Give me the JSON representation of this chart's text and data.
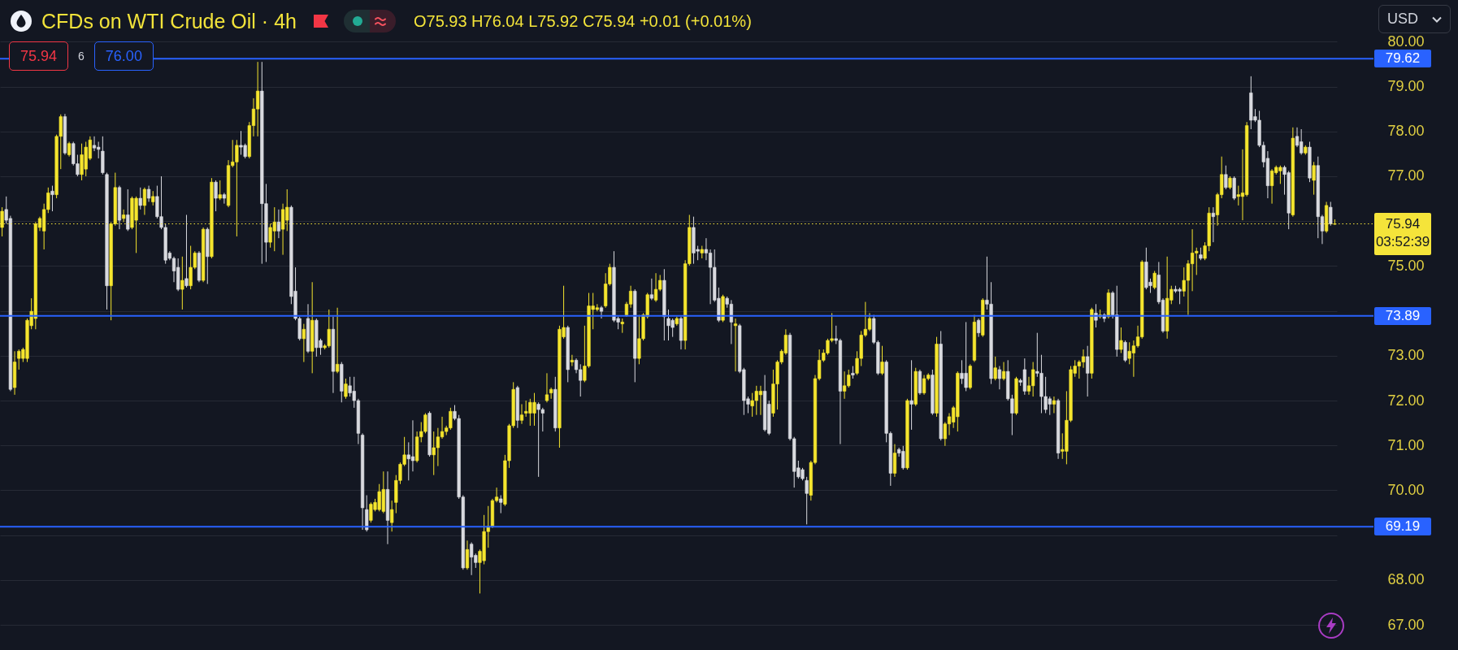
{
  "chart_data": {
    "type": "candlestick",
    "title": "CFDs on WTI Crude Oil · 4h",
    "subtitle": "O75.93 H76.04 L75.92 C75.94 +0.01 (+0.01%)",
    "annotations": [
      "75.94",
      "6",
      "76.00",
      "USD",
      "03:52:39"
    ],
    "categories": [
      null,
      null,
      null,
      null,
      null,
      null,
      null,
      null,
      null,
      null,
      null,
      null,
      null,
      null,
      null,
      null,
      null,
      null,
      null,
      null,
      null,
      null,
      null,
      null,
      null,
      null,
      null,
      null,
      null,
      null,
      null,
      null,
      null,
      null,
      null,
      null,
      null,
      null,
      null,
      null,
      null,
      null,
      null,
      null,
      null,
      null,
      null,
      null,
      null,
      null,
      null,
      null,
      null,
      null,
      null,
      null,
      null,
      null,
      null,
      null,
      null,
      null,
      null,
      null,
      null,
      null,
      null,
      null,
      null,
      null,
      null,
      null,
      null,
      null,
      null,
      null,
      null,
      null,
      null,
      null,
      null,
      null,
      null,
      null,
      null,
      null,
      null,
      null,
      null,
      null,
      null,
      null,
      null,
      null,
      null,
      null,
      null,
      null,
      null,
      null,
      null,
      null,
      null,
      null,
      null,
      null,
      null,
      null,
      null,
      null,
      null,
      null,
      null,
      null,
      null,
      null,
      null,
      null,
      null,
      null,
      null,
      null,
      null,
      null,
      null,
      null,
      null,
      null,
      null,
      null,
      null,
      null,
      null,
      null,
      null,
      null,
      null,
      null,
      null,
      null,
      null,
      null,
      null,
      null,
      null,
      null,
      null,
      null,
      null,
      null,
      null,
      null,
      null,
      null,
      null,
      null,
      null,
      null,
      null,
      null,
      null,
      null,
      null,
      null,
      null,
      null,
      null,
      null,
      null,
      null,
      null,
      null,
      null,
      null,
      null,
      null,
      null,
      null,
      null,
      null,
      null,
      null,
      null,
      null,
      null,
      null,
      null,
      null,
      null,
      null,
      null,
      null,
      null,
      null,
      null,
      null,
      null,
      null,
      null,
      null,
      null,
      null,
      null,
      null,
      null,
      null,
      null,
      null,
      null,
      null,
      null,
      null,
      null,
      null,
      null,
      null,
      null,
      null,
      null,
      null,
      null,
      null,
      null,
      null,
      null,
      null,
      null,
      null,
      null,
      null,
      null,
      null,
      null,
      null,
      null,
      null,
      null,
      null,
      null,
      null,
      null,
      null,
      null,
      null,
      null,
      null,
      null,
      null,
      null,
      null,
      null,
      null,
      null,
      null,
      null,
      null,
      null,
      null,
      null,
      null,
      null,
      null,
      null,
      null,
      null,
      null,
      null,
      null,
      null,
      null,
      null,
      null,
      null,
      null,
      null,
      null,
      null,
      null,
      null,
      null,
      null,
      null,
      null,
      null,
      null,
      null,
      null,
      null,
      null,
      null,
      null,
      null,
      null,
      null,
      null,
      null,
      null,
      null,
      null,
      null,
      null,
      null,
      null,
      null,
      null,
      null,
      null,
      null,
      null,
      null,
      null,
      null,
      null,
      null,
      null,
      null,
      null,
      null,
      null
    ],
    "ohlc": [
      [
        75.86,
        76.31,
        75.66,
        76.22
      ],
      [
        76.26,
        76.55,
        75.94,
        76.02
      ],
      [
        76.06,
        76.12,
        72.21,
        72.25
      ],
      [
        72.29,
        73.1,
        72.13,
        72.86
      ],
      [
        72.94,
        73.14,
        72.69,
        73.1
      ],
      [
        72.94,
        73.18,
        72.86,
        73.14
      ],
      [
        72.94,
        73.83,
        72.86,
        73.79
      ],
      [
        73.67,
        74.28,
        73.59,
        73.99
      ],
      [
        73.83,
        75.98,
        73.59,
        75.94
      ],
      [
        75.86,
        76.1,
        75.78,
        76.06
      ],
      [
        75.78,
        76.39,
        75.37,
        76.26
      ],
      [
        76.26,
        76.75,
        76.18,
        76.63
      ],
      [
        76.67,
        76.79,
        76.22,
        76.59
      ],
      [
        76.59,
        77.93,
        76.51,
        77.89
      ],
      [
        77.89,
        78.38,
        77.16,
        78.33
      ],
      [
        78.33,
        78.39,
        77.48,
        77.52
      ],
      [
        77.48,
        77.77,
        77.44,
        77.73
      ],
      [
        77.73,
        77.77,
        77.24,
        77.28
      ],
      [
        77.28,
        77.48,
        77,
        77.04
      ],
      [
        77.04,
        77.73,
        76.91,
        77.48
      ],
      [
        77.16,
        77.77,
        77,
        77.65
      ],
      [
        77.4,
        77.89,
        77.36,
        77.81
      ],
      [
        77.69,
        77.89,
        77.56,
        77.63
      ],
      [
        77.65,
        77.77,
        77.4,
        77.6
      ],
      [
        77.56,
        77.89,
        77.04,
        77.08
      ],
      [
        77.04,
        77.08,
        74.03,
        74.56
      ],
      [
        74.56,
        75.98,
        73.79,
        75.94
      ],
      [
        75.94,
        77.08,
        75.9,
        76.75
      ],
      [
        76.75,
        76.79,
        75.82,
        76.02
      ],
      [
        76.06,
        76.26,
        75.98,
        76.14
      ],
      [
        76.14,
        76.71,
        75.78,
        75.82
      ],
      [
        75.86,
        76.55,
        75.82,
        76.51
      ],
      [
        76.02,
        76.55,
        75.29,
        76.51
      ],
      [
        76.51,
        76.75,
        76.26,
        76.35
      ],
      [
        76.35,
        76.75,
        76.14,
        76.71
      ],
      [
        76.71,
        76.79,
        76.43,
        76.51
      ],
      [
        76.43,
        76.67,
        76.35,
        76.55
      ],
      [
        76.55,
        76.79,
        76.06,
        76.1
      ],
      [
        76.1,
        77,
        75.82,
        75.86
      ],
      [
        75.86,
        75.94,
        75.05,
        75.13
      ],
      [
        75.29,
        75.33,
        75.13,
        75.17
      ],
      [
        75.17,
        75.21,
        74.64,
        74.89
      ],
      [
        74.97,
        75.17,
        74.44,
        74.48
      ],
      [
        74.48,
        75.21,
        74.03,
        74.68
      ],
      [
        74.72,
        76.14,
        74.52,
        74.56
      ],
      [
        74.56,
        75.45,
        74.48,
        74.97
      ],
      [
        74.97,
        75.33,
        74.93,
        75.29
      ],
      [
        75.29,
        75.33,
        74.64,
        74.68
      ],
      [
        74.68,
        75.86,
        74.64,
        75.82
      ],
      [
        75.82,
        75.86,
        74.6,
        75.21
      ],
      [
        75.21,
        76.96,
        75.17,
        76.87
      ],
      [
        76.87,
        76.91,
        76.22,
        76.51
      ],
      [
        76.51,
        76.91,
        76.47,
        76.59
      ],
      [
        76.59,
        76.63,
        76.39,
        76.51
      ],
      [
        76.35,
        77.36,
        76.31,
        77.24
      ],
      [
        77.24,
        77.81,
        77.2,
        77.32
      ],
      [
        77.32,
        77.81,
        75.66,
        77.69
      ],
      [
        77.69,
        78.01,
        77.48,
        77.65
      ],
      [
        77.69,
        77.73,
        77.4,
        77.44
      ],
      [
        77.44,
        78.21,
        77.4,
        78.13
      ],
      [
        78.13,
        78.74,
        77.89,
        78.5
      ],
      [
        78.5,
        79.55,
        77.89,
        78.9
      ],
      [
        78.9,
        79.55,
        75.05,
        76.39
      ],
      [
        76.39,
        76.83,
        75.09,
        75.53
      ],
      [
        75.53,
        75.94,
        75.41,
        75.86
      ],
      [
        75.78,
        76.31,
        75.33,
        75.98
      ],
      [
        75.98,
        76.26,
        75.62,
        75.78
      ],
      [
        75.82,
        76.39,
        75.25,
        76.26
      ],
      [
        76.02,
        76.71,
        75.78,
        76.31
      ],
      [
        76.31,
        76.35,
        74.15,
        74.32
      ],
      [
        74.44,
        74.97,
        73.79,
        73.83
      ],
      [
        73.83,
        73.87,
        73.34,
        73.38
      ],
      [
        73.38,
        73.71,
        72.86,
        73.59
      ],
      [
        73.83,
        74.15,
        73.06,
        73.1
      ],
      [
        73.1,
        74.64,
        72.61,
        73.79
      ],
      [
        73.79,
        73.83,
        72.98,
        73.18
      ],
      [
        73.34,
        73.38,
        73.02,
        73.18
      ],
      [
        73.18,
        73.26,
        73.14,
        73.22
      ],
      [
        73.22,
        74.03,
        73.18,
        73.59
      ],
      [
        73.59,
        73.87,
        72.17,
        72.65
      ],
      [
        72.65,
        74.07,
        72.61,
        72.81
      ],
      [
        72.81,
        72.86,
        71.96,
        72.21
      ],
      [
        72.09,
        72.49,
        72.04,
        72.37
      ],
      [
        72.33,
        72.53,
        72.09,
        72.17
      ],
      [
        72.21,
        72.53,
        71.84,
        72
      ],
      [
        72,
        72.04,
        71.03,
        71.27
      ],
      [
        71.23,
        71.27,
        69.12,
        69.61
      ],
      [
        69.57,
        69.89,
        69.08,
        69.12
      ],
      [
        69.33,
        69.73,
        69.28,
        69.69
      ],
      [
        69.57,
        69.81,
        69.53,
        69.73
      ],
      [
        69.57,
        70.14,
        69.53,
        69.97
      ],
      [
        69.53,
        70.42,
        69.49,
        70.02
      ],
      [
        70.02,
        70.42,
        68.8,
        69.33
      ],
      [
        69.28,
        69.77,
        69.08,
        69.57
      ],
      [
        69.73,
        70.34,
        69.49,
        70.22
      ],
      [
        70.22,
        70.62,
        70.14,
        70.58
      ],
      [
        70.58,
        71.19,
        70.54,
        70.79
      ],
      [
        70.79,
        71.07,
        70.22,
        70.7
      ],
      [
        70.75,
        71.56,
        70.42,
        70.66
      ],
      [
        70.66,
        71.31,
        70.62,
        71.19
      ],
      [
        71.19,
        71.52,
        71.07,
        71.31
      ],
      [
        71.31,
        71.72,
        71.27,
        71.68
      ],
      [
        71.72,
        71.76,
        70.75,
        70.79
      ],
      [
        70.79,
        71.31,
        70.34,
        70.95
      ],
      [
        70.95,
        71.39,
        70.54,
        71.19
      ],
      [
        71.19,
        71.64,
        71.15,
        71.31
      ],
      [
        71.31,
        71.44,
        71.23,
        71.39
      ],
      [
        71.39,
        71.84,
        71.35,
        71.76
      ],
      [
        71.76,
        71.9,
        71.56,
        71.6
      ],
      [
        71.6,
        71.68,
        69.81,
        69.85
      ],
      [
        69.85,
        69.89,
        68.23,
        68.27
      ],
      [
        68.27,
        68.88,
        68.23,
        68.68
      ],
      [
        68.8,
        68.84,
        68.11,
        68.51
      ],
      [
        68.55,
        68.59,
        68.27,
        68.39
      ],
      [
        68.39,
        68.68,
        67.7,
        68.64
      ],
      [
        68.43,
        69.45,
        68.35,
        69.08
      ],
      [
        69.08,
        69.65,
        68.72,
        69.2
      ],
      [
        69.2,
        69.81,
        69.16,
        69.77
      ],
      [
        69.77,
        70.06,
        69.73,
        69.85
      ],
      [
        69.81,
        69.89,
        69.49,
        69.73
      ],
      [
        69.69,
        70.79,
        69.65,
        70.66
      ],
      [
        70.66,
        71.48,
        70.5,
        71.44
      ],
      [
        71.44,
        72.41,
        71.39,
        72.25
      ],
      [
        72.29,
        72.33,
        71.39,
        71.56
      ],
      [
        71.56,
        71.92,
        71.48,
        71.68
      ],
      [
        71.72,
        72,
        71.64,
        71.76
      ],
      [
        71.72,
        72.04,
        71.44,
        71.96
      ],
      [
        71.72,
        72.17,
        71.44,
        71.96
      ],
      [
        71.92,
        71.96,
        70.3,
        71.8
      ],
      [
        71.8,
        71.84,
        71.31,
        71.72
      ],
      [
        72,
        72.61,
        71.96,
        72.13
      ],
      [
        72.17,
        72.29,
        72.04,
        72.25
      ],
      [
        72.25,
        72.53,
        71.31,
        71.39
      ],
      [
        71.39,
        73.67,
        70.95,
        73.59
      ],
      [
        73.42,
        74.56,
        73.38,
        73.63
      ],
      [
        73.63,
        73.67,
        72.41,
        72.69
      ],
      [
        72.86,
        73.02,
        72.77,
        72.9
      ],
      [
        72.9,
        72.94,
        72.61,
        72.69
      ],
      [
        72.69,
        72.81,
        72.09,
        72.45
      ],
      [
        72.45,
        73.67,
        72.41,
        72.77
      ],
      [
        72.77,
        74.4,
        72.73,
        74.11
      ],
      [
        74.03,
        74.4,
        73.59,
        74.11
      ],
      [
        74.03,
        74.15,
        73.99,
        74.07
      ],
      [
        74.07,
        74.11,
        73.83,
        73.99
      ],
      [
        74.11,
        74.84,
        74.07,
        74.6
      ],
      [
        74.6,
        75.05,
        74.56,
        74.97
      ],
      [
        74.97,
        75.33,
        73.75,
        73.79
      ],
      [
        73.83,
        73.87,
        73.59,
        73.75
      ],
      [
        73.71,
        73.83,
        73.51,
        73.75
      ],
      [
        73.91,
        74.2,
        73.87,
        74.15
      ],
      [
        74.15,
        74.56,
        74.07,
        74.44
      ],
      [
        74.44,
        74.48,
        72.41,
        72.94
      ],
      [
        72.94,
        73.91,
        72.81,
        73.38
      ],
      [
        73.38,
        73.95,
        73.34,
        73.91
      ],
      [
        73.87,
        74.4,
        73.83,
        74.36
      ],
      [
        74.36,
        74.72,
        74.24,
        74.28
      ],
      [
        74.24,
        74.84,
        74.2,
        74.48
      ],
      [
        74.48,
        74.8,
        74.44,
        74.68
      ],
      [
        74.68,
        74.93,
        73.34,
        73.87
      ],
      [
        73.83,
        74.03,
        73.34,
        73.67
      ],
      [
        73.79,
        73.83,
        73.42,
        73.63
      ],
      [
        73.71,
        73.87,
        73.67,
        73.83
      ],
      [
        73.83,
        73.87,
        73.14,
        73.34
      ],
      [
        73.34,
        75.13,
        73.14,
        75.05
      ],
      [
        75.05,
        76.14,
        75.01,
        75.86
      ],
      [
        75.86,
        76.1,
        75.05,
        75.29
      ],
      [
        75.37,
        75.45,
        75.13,
        75.33
      ],
      [
        75.29,
        75.45,
        75.17,
        75.37
      ],
      [
        75.37,
        75.62,
        75.13,
        75.29
      ],
      [
        75.29,
        75.37,
        74.15,
        74.97
      ],
      [
        74.97,
        75.37,
        74.2,
        74.24
      ],
      [
        74.28,
        74.52,
        73.75,
        73.79
      ],
      [
        73.79,
        74.36,
        73.75,
        74.32
      ],
      [
        74.28,
        74.32,
        74.07,
        74.15
      ],
      [
        74.15,
        74.24,
        73.26,
        73.75
      ],
      [
        73.67,
        73.83,
        72.65,
        73.71
      ],
      [
        73.67,
        73.71,
        72.61,
        72.65
      ],
      [
        72.69,
        72.73,
        71.68,
        72
      ],
      [
        72.04,
        72.09,
        71.72,
        71.92
      ],
      [
        71.88,
        72.17,
        71.64,
        72
      ],
      [
        72,
        72.33,
        71.68,
        72.21
      ],
      [
        72.13,
        72.33,
        71.68,
        72.21
      ],
      [
        72.21,
        72.57,
        71.31,
        71.35
      ],
      [
        71.92,
        72,
        71.23,
        71.27
      ],
      [
        71.72,
        72.69,
        71.64,
        72.37
      ],
      [
        72.37,
        72.9,
        71.8,
        72.86
      ],
      [
        72.86,
        73.14,
        72.81,
        73.1
      ],
      [
        73.06,
        73.59,
        73.02,
        73.46
      ],
      [
        73.46,
        73.51,
        71.11,
        71.15
      ],
      [
        71.15,
        71.19,
        70.06,
        70.42
      ],
      [
        70.5,
        70.66,
        70.26,
        70.3
      ],
      [
        70.46,
        70.5,
        70.22,
        70.26
      ],
      [
        70.22,
        70.3,
        69.24,
        69.93
      ],
      [
        69.89,
        70.66,
        69.77,
        70.62
      ],
      [
        70.62,
        72.57,
        70.58,
        72.49
      ],
      [
        72.49,
        73.14,
        72.45,
        72.9
      ],
      [
        72.9,
        73.14,
        72.86,
        73.06
      ],
      [
        73.06,
        73.38,
        73.02,
        73.34
      ],
      [
        73.34,
        73.95,
        73.3,
        73.38
      ],
      [
        73.38,
        73.67,
        73.26,
        73.34
      ],
      [
        73.34,
        73.38,
        71.03,
        72.21
      ],
      [
        72.21,
        72.65,
        72.04,
        72.33
      ],
      [
        72.33,
        72.69,
        72.29,
        72.57
      ],
      [
        72.61,
        72.77,
        72.49,
        72.57
      ],
      [
        72.61,
        73.1,
        72.57,
        72.94
      ],
      [
        72.94,
        73.55,
        72.77,
        73.46
      ],
      [
        73.46,
        74.2,
        73.42,
        73.59
      ],
      [
        73.59,
        73.95,
        73.55,
        73.83
      ],
      [
        73.83,
        73.91,
        73.26,
        73.3
      ],
      [
        73.3,
        73.34,
        72.57,
        72.61
      ],
      [
        72.61,
        73.22,
        72.57,
        72.86
      ],
      [
        72.86,
        72.9,
        71.07,
        71.27
      ],
      [
        71.27,
        71.31,
        70.1,
        70.38
      ],
      [
        70.38,
        71.03,
        70.3,
        70.83
      ],
      [
        70.91,
        70.95,
        70.75,
        70.83
      ],
      [
        70.87,
        70.99,
        70.46,
        70.5
      ],
      [
        70.5,
        72.04,
        70.46,
        72
      ],
      [
        72,
        72.9,
        71.35,
        71.92
      ],
      [
        71.92,
        72.73,
        71.88,
        72.65
      ],
      [
        72.65,
        72.69,
        72.13,
        72.17
      ],
      [
        72.17,
        72.57,
        72.13,
        72.49
      ],
      [
        72.49,
        72.61,
        72.45,
        72.57
      ],
      [
        72.57,
        72.69,
        71.68,
        71.72
      ],
      [
        71.72,
        73.42,
        71.64,
        73.26
      ],
      [
        73.26,
        73.55,
        71.11,
        71.15
      ],
      [
        71.15,
        71.52,
        70.99,
        71.48
      ],
      [
        71.48,
        71.72,
        71.23,
        71.64
      ],
      [
        71.52,
        71.88,
        71.39,
        71.84
      ],
      [
        71.64,
        72.65,
        71.31,
        72.61
      ],
      [
        72.61,
        72.9,
        72.37,
        72.49
      ],
      [
        72.61,
        73.75,
        72.21,
        72.29
      ],
      [
        72.29,
        72.81,
        72.25,
        72.77
      ],
      [
        72.9,
        73.91,
        72.86,
        73.75
      ],
      [
        73.79,
        73.83,
        73.42,
        73.51
      ],
      [
        73.46,
        74.28,
        73.42,
        74.24
      ],
      [
        74.24,
        75.21,
        74.03,
        74.15
      ],
      [
        74.15,
        74.64,
        72.37,
        72.49
      ],
      [
        72.49,
        72.98,
        72.45,
        72.73
      ],
      [
        72.69,
        72.77,
        72.25,
        72.49
      ],
      [
        72.49,
        72.86,
        72.45,
        72.65
      ],
      [
        72.65,
        72.9,
        72,
        72.04
      ],
      [
        72.04,
        72.13,
        71.23,
        71.72
      ],
      [
        71.72,
        72.53,
        71.68,
        72.49
      ],
      [
        72.45,
        72.49,
        72.33,
        72.41
      ],
      [
        72.69,
        72.94,
        72.13,
        72.21
      ],
      [
        72.21,
        72.53,
        72.13,
        72.33
      ],
      [
        72.33,
        72.86,
        72.09,
        72.69
      ],
      [
        72.65,
        73.51,
        72.53,
        72.61
      ],
      [
        72.61,
        73.02,
        71.72,
        72.09
      ],
      [
        72.09,
        72.53,
        71.72,
        71.8
      ],
      [
        72.04,
        72.09,
        71.68,
        71.92
      ],
      [
        71.92,
        72.09,
        71.72,
        72
      ],
      [
        72,
        72.04,
        70.7,
        70.83
      ],
      [
        70.87,
        71.27,
        70.7,
        70.91
      ],
      [
        70.87,
        72.21,
        70.58,
        71.56
      ],
      [
        71.56,
        72.77,
        71.52,
        72.69
      ],
      [
        72.61,
        72.9,
        72.53,
        72.77
      ],
      [
        72.77,
        72.9,
        72.49,
        72.86
      ],
      [
        72.86,
        73.14,
        72.73,
        72.98
      ],
      [
        72.98,
        73.22,
        72.09,
        72.61
      ],
      [
        72.61,
        74.07,
        72.49,
        74.03
      ],
      [
        73.95,
        74.15,
        73.63,
        73.79
      ],
      [
        73.87,
        74.03,
        73.83,
        73.91
      ],
      [
        73.91,
        73.95,
        73.75,
        73.83
      ],
      [
        73.87,
        74.48,
        73.83,
        74.4
      ],
      [
        74.4,
        74.44,
        73.83,
        73.91
      ],
      [
        73.91,
        74.56,
        72.98,
        73.14
      ],
      [
        73.14,
        73.63,
        73.06,
        73.34
      ],
      [
        73.3,
        73.34,
        72.86,
        72.9
      ],
      [
        72.94,
        73.3,
        72.81,
        73.1
      ],
      [
        73.06,
        73.34,
        72.53,
        73.22
      ],
      [
        73.22,
        73.67,
        73.18,
        73.42
      ],
      [
        73.42,
        75.13,
        73.38,
        75.09
      ],
      [
        75.09,
        75.41,
        74.48,
        74.52
      ],
      [
        74.64,
        74.72,
        74.4,
        74.56
      ],
      [
        74.52,
        74.89,
        74.48,
        74.84
      ],
      [
        74.8,
        75.09,
        74.15,
        74.2
      ],
      [
        74.24,
        74.28,
        73.51,
        73.55
      ],
      [
        73.55,
        75.21,
        73.38,
        74.28
      ],
      [
        74.24,
        74.56,
        74.15,
        74.48
      ],
      [
        74.48,
        74.56,
        74.4,
        74.44
      ],
      [
        74.48,
        74.52,
        74.15,
        74.44
      ],
      [
        74.44,
        74.97,
        74.32,
        74.68
      ],
      [
        74.68,
        75.13,
        73.91,
        75.05
      ],
      [
        75.05,
        75.82,
        74.44,
        75.29
      ],
      [
        75.29,
        75.41,
        74.8,
        75.33
      ],
      [
        75.25,
        75.41,
        75.13,
        75.17
      ],
      [
        75.17,
        75.53,
        75.13,
        75.45
      ],
      [
        75.45,
        76.31,
        75.33,
        76.18
      ],
      [
        76.18,
        76.31,
        75.53,
        76.1
      ],
      [
        76.14,
        76.63,
        75.9,
        76.59
      ],
      [
        76.59,
        77.44,
        76.51,
        77.04
      ],
      [
        77.04,
        77.24,
        76.71,
        76.75
      ],
      [
        76.75,
        77,
        76.71,
        76.96
      ],
      [
        76.96,
        77,
        76.47,
        76.51
      ],
      [
        76.55,
        76.79,
        76.35,
        76.59
      ],
      [
        76.55,
        77.6,
        76.02,
        76.63
      ],
      [
        76.59,
        78.21,
        76.55,
        78.13
      ],
      [
        78.86,
        79.23,
        78.05,
        78.25
      ],
      [
        78.33,
        78.5,
        78.21,
        78.25
      ],
      [
        78.25,
        78.46,
        77.65,
        77.69
      ],
      [
        77.69,
        77.77,
        77.2,
        77.32
      ],
      [
        77.4,
        77.56,
        76.51,
        76.79
      ],
      [
        76.79,
        77.16,
        76.39,
        77.12
      ],
      [
        77.08,
        77.24,
        77.04,
        77.2
      ],
      [
        77.12,
        77.24,
        76.83,
        77.2
      ],
      [
        77.2,
        77.24,
        76.59,
        77.04
      ],
      [
        77.08,
        77.12,
        75.82,
        76.18
      ],
      [
        76.14,
        78.09,
        76.1,
        77.85
      ],
      [
        77.89,
        78.09,
        77.65,
        77.69
      ],
      [
        77.77,
        78.05,
        77.48,
        77.52
      ],
      [
        77.52,
        77.69,
        77.48,
        77.65
      ],
      [
        77.65,
        77.77,
        76.87,
        76.96
      ],
      [
        76.91,
        77.32,
        76.59,
        77.24
      ],
      [
        77.24,
        77.44,
        75.62,
        76.1
      ],
      [
        76.1,
        76.14,
        75.49,
        75.78
      ],
      [
        75.78,
        76.43,
        75.74,
        76.35
      ],
      [
        76.31,
        76.43,
        75.9,
        75.94
      ],
      [
        75.93,
        76.04,
        75.92,
        75.94
      ]
    ],
    "colors": [
      "#f5e52e",
      "#d9dadf",
      "#d9dadf",
      "#f5e52e",
      "#f5e52e",
      "#f5e52e",
      "#f5e52e",
      "#f5e52e",
      "#f5e52e",
      "#f5e52e",
      "#f5e52e",
      "#f5e52e",
      "#d9dadf",
      "#f5e52e",
      "#f5e52e",
      "#d9dadf",
      "#f5e52e",
      "#d9dadf",
      "#d9dadf",
      "#f5e52e",
      "#f5e52e",
      "#f5e52e",
      "#d9dadf",
      "#d9dadf",
      "#d9dadf",
      "#d9dadf",
      "#f5e52e",
      "#f5e52e",
      "#d9dadf",
      "#f5e52e",
      "#d9dadf",
      "#f5e52e",
      "#f5e52e",
      "#d9dadf",
      "#f5e52e",
      "#d9dadf",
      "#f5e52e",
      "#d9dadf",
      "#d9dadf",
      "#d9dadf",
      "#d9dadf",
      "#d9dadf",
      "#d9dadf",
      "#f5e52e",
      "#d9dadf",
      "#f5e52e",
      "#f5e52e",
      "#d9dadf",
      "#f5e52e",
      "#d9dadf",
      "#f5e52e",
      "#d9dadf",
      "#f5e52e",
      "#d9dadf",
      "#f5e52e",
      "#f5e52e",
      "#f5e52e",
      "#d9dadf",
      "#d9dadf",
      "#f5e52e",
      "#f5e52e",
      "#f5e52e",
      "#d9dadf",
      "#d9dadf",
      "#f5e52e",
      "#f5e52e",
      "#d9dadf",
      "#f5e52e",
      "#f5e52e",
      "#d9dadf",
      "#d9dadf",
      "#d9dadf",
      "#f5e52e",
      "#d9dadf",
      "#f5e52e",
      "#d9dadf",
      "#d9dadf",
      "#f5e52e",
      "#f5e52e",
      "#d9dadf",
      "#f5e52e",
      "#d9dadf",
      "#f5e52e",
      "#d9dadf",
      "#d9dadf",
      "#d9dadf",
      "#d9dadf",
      "#d9dadf",
      "#f5e52e",
      "#f5e52e",
      "#f5e52e",
      "#f5e52e",
      "#d9dadf",
      "#f5e52e",
      "#f5e52e",
      "#f5e52e",
      "#f5e52e",
      "#d9dadf",
      "#d9dadf",
      "#f5e52e",
      "#f5e52e",
      "#f5e52e",
      "#d9dadf",
      "#f5e52e",
      "#f5e52e",
      "#f5e52e",
      "#f5e52e",
      "#f5e52e",
      "#d9dadf",
      "#d9dadf",
      "#d9dadf",
      "#f5e52e",
      "#d9dadf",
      "#d9dadf",
      "#f5e52e",
      "#f5e52e",
      "#f5e52e",
      "#f5e52e",
      "#f5e52e",
      "#d9dadf",
      "#f5e52e",
      "#f5e52e",
      "#f5e52e",
      "#d9dadf",
      "#f5e52e",
      "#f5e52e",
      "#f5e52e",
      "#f5e52e",
      "#d9dadf",
      "#d9dadf",
      "#f5e52e",
      "#f5e52e",
      "#d9dadf",
      "#f5e52e",
      "#f5e52e",
      "#d9dadf",
      "#f5e52e",
      "#d9dadf",
      "#d9dadf",
      "#f5e52e",
      "#f5e52e",
      "#f5e52e",
      "#f5e52e",
      "#d9dadf",
      "#f5e52e",
      "#f5e52e",
      "#d9dadf",
      "#d9dadf",
      "#f5e52e",
      "#f5e52e",
      "#f5e52e",
      "#d9dadf",
      "#f5e52e",
      "#f5e52e",
      "#f5e52e",
      "#d9dadf",
      "#f5e52e",
      "#f5e52e",
      "#d9dadf",
      "#d9dadf",
      "#d9dadf",
      "#f5e52e",
      "#d9dadf",
      "#f5e52e",
      "#f5e52e",
      "#d9dadf",
      "#d9dadf",
      "#f5e52e",
      "#d9dadf",
      "#d9dadf",
      "#d9dadf",
      "#d9dadf",
      "#f5e52e",
      "#d9dadf",
      "#d9dadf",
      "#f5e52e",
      "#d9dadf",
      "#d9dadf",
      "#d9dadf",
      "#f5e52e",
      "#f5e52e",
      "#f5e52e",
      "#d9dadf",
      "#d9dadf",
      "#f5e52e",
      "#f5e52e",
      "#f5e52e",
      "#f5e52e",
      "#d9dadf",
      "#d9dadf",
      "#d9dadf",
      "#d9dadf",
      "#d9dadf",
      "#f5e52e",
      "#f5e52e",
      "#f5e52e",
      "#f5e52e",
      "#f5e52e",
      "#f5e52e",
      "#d9dadf",
      "#d9dadf",
      "#f5e52e",
      "#f5e52e",
      "#d9dadf",
      "#f5e52e",
      "#f5e52e",
      "#f5e52e",
      "#f5e52e",
      "#d9dadf",
      "#d9dadf",
      "#f5e52e",
      "#d9dadf",
      "#d9dadf",
      "#f5e52e",
      "#d9dadf",
      "#d9dadf",
      "#f5e52e",
      "#d9dadf",
      "#f5e52e",
      "#d9dadf",
      "#f5e52e",
      "#f5e52e",
      "#d9dadf",
      "#f5e52e",
      "#d9dadf",
      "#f5e52e",
      "#f5e52e",
      "#f5e52e",
      "#f5e52e",
      "#d9dadf",
      "#d9dadf",
      "#f5e52e",
      "#f5e52e",
      "#d9dadf",
      "#f5e52e",
      "#d9dadf",
      "#d9dadf",
      "#f5e52e",
      "#d9dadf",
      "#f5e52e",
      "#d9dadf",
      "#d9dadf",
      "#f5e52e",
      "#d9dadf",
      "#d9dadf",
      "#f5e52e",
      "#f5e52e",
      "#d9dadf",
      "#d9dadf",
      "#d9dadf",
      "#d9dadf",
      "#f5e52e",
      "#d9dadf",
      "#f5e52e",
      "#f5e52e",
      "#f5e52e",
      "#f5e52e",
      "#f5e52e",
      "#f5e52e",
      "#d9dadf",
      "#f5e52e",
      "#d9dadf",
      "#f5e52e",
      "#d9dadf",
      "#f5e52e",
      "#d9dadf",
      "#d9dadf",
      "#f5e52e",
      "#d9dadf",
      "#f5e52e",
      "#f5e52e",
      "#f5e52e",
      "#f5e52e",
      "#d9dadf",
      "#d9dadf",
      "#f5e52e",
      "#d9dadf",
      "#d9dadf",
      "#f5e52e",
      "#f5e52e",
      "#d9dadf",
      "#d9dadf",
      "#f5e52e",
      "#f5e52e",
      "#f5e52e",
      "#f5e52e",
      "#d9dadf",
      "#f5e52e",
      "#f5e52e",
      "#d9dadf",
      "#f5e52e",
      "#f5e52e",
      "#d9dadf",
      "#f5e52e",
      "#d9dadf",
      "#f5e52e",
      "#f5e52e",
      "#f5e52e",
      "#d9dadf",
      "#d9dadf",
      "#d9dadf",
      "#d9dadf",
      "#d9dadf",
      "#f5e52e",
      "#f5e52e",
      "#f5e52e",
      "#d9dadf",
      "#d9dadf",
      "#f5e52e",
      "#d9dadf",
      "#d9dadf",
      "#f5e52e",
      "#d9dadf",
      "#f5e52e",
      "#d9dadf",
      "#d9dadf",
      "#f5e52e",
      "#d9dadf",
      "#f5e52e"
    ],
    "ylim": [
      66.44,
      80.93
    ],
    "yticks": [
      {
        "value": 67,
        "label": "67.00"
      },
      {
        "value": 68,
        "label": "68.00"
      },
      {
        "value": 69,
        "label": null
      },
      {
        "value": 70,
        "label": "70.00"
      },
      {
        "value": 71,
        "label": "71.00"
      },
      {
        "value": 72,
        "label": "72.00"
      },
      {
        "value": 73,
        "label": "73.00"
      },
      {
        "value": 74,
        "label": null
      },
      {
        "value": 75,
        "label": "75.00"
      },
      {
        "value": 76,
        "label": null
      },
      {
        "value": 77,
        "label": "77.00"
      },
      {
        "value": 78,
        "label": "78.00"
      },
      {
        "value": 79,
        "label": "79.00"
      },
      {
        "value": 80,
        "label": "80.00"
      }
    ],
    "ref_lines": [
      {
        "axis": "y",
        "value": 79.62,
        "label": "79.62",
        "color": "#2962ff"
      },
      {
        "axis": "y",
        "value": 73.89,
        "label": "73.89",
        "color": "#2962ff"
      },
      {
        "axis": "y",
        "value": 69.19,
        "label": "69.19",
        "color": "#2962ff"
      },
      {
        "axis": "y",
        "value": 75.94,
        "label": "75.94",
        "color": "#f5e43a",
        "line_style": "dotted"
      }
    ],
    "grid": "y",
    "tick_labels": "y"
  }
}
